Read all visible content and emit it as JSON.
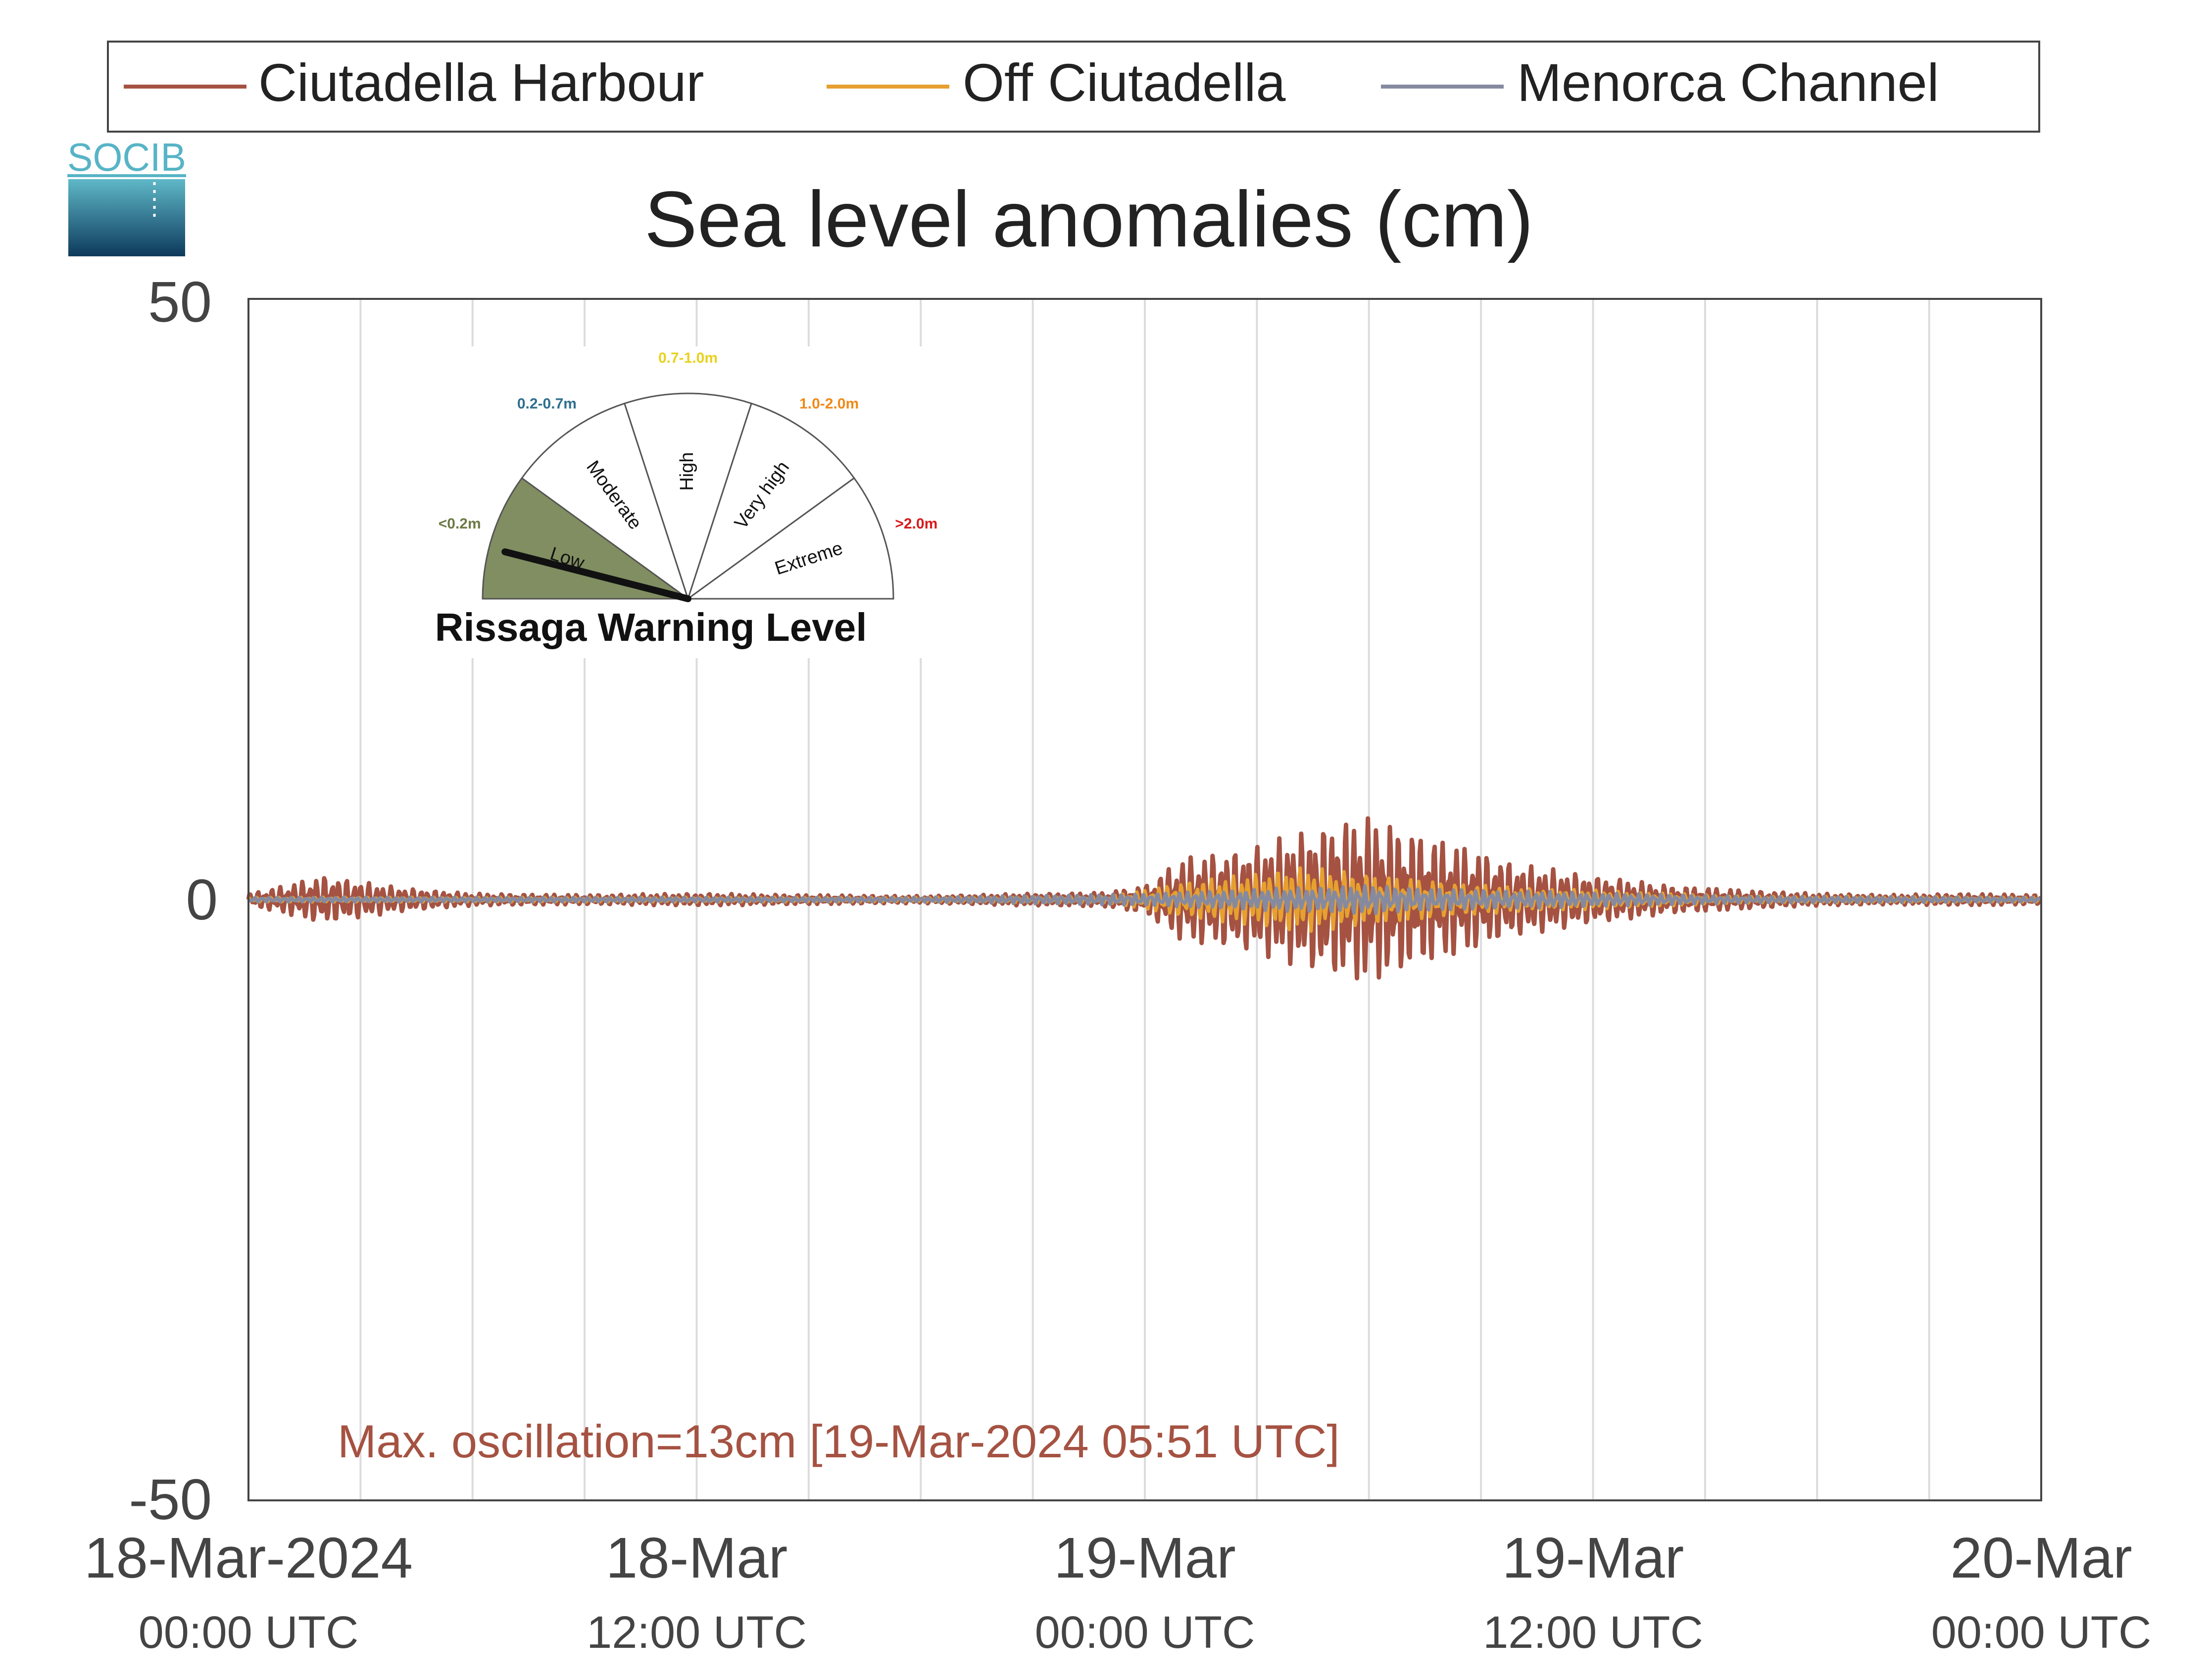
{
  "logo": {
    "text": "SOCIB"
  },
  "gauge": {
    "title": "Rissaga Warning Level",
    "levels": [
      {
        "name": "Low",
        "range": "<0.2m",
        "color": "#6b7a45"
      },
      {
        "name": "Moderate",
        "range": "0.2-0.7m",
        "color": "#2e6f8e"
      },
      {
        "name": "High",
        "range": "0.7-1.0m",
        "color": "#e8d21d"
      },
      {
        "name": "Very high",
        "range": "1.0-2.0m",
        "color": "#ef8a1a"
      },
      {
        "name": "Extreme",
        "range": ">2.0m",
        "color": "#d7191c"
      }
    ],
    "active_level": "Low",
    "needle_fraction": 0.08
  },
  "annotation": {
    "text": "Max. oscillation=13cm [19-Mar-2024 05:51 UTC]",
    "color": "#a55242"
  },
  "chart_data": {
    "type": "line",
    "title": "Sea level anomalies (cm)",
    "ylim": [
      -50,
      50
    ],
    "yticks": [
      "50",
      "0",
      "-50"
    ],
    "x_unit": "time",
    "x_range_hours": [
      0,
      48
    ],
    "xticks": [
      {
        "line1": "18-Mar-2024",
        "line2": "00:00 UTC",
        "hour": 0
      },
      {
        "line1": "18-Mar",
        "line2": "12:00 UTC",
        "hour": 12
      },
      {
        "line1": "19-Mar",
        "line2": "00:00 UTC",
        "hour": 24
      },
      {
        "line1": "19-Mar",
        "line2": "12:00 UTC",
        "hour": 36
      },
      {
        "line1": "20-Mar",
        "line2": "00:00 UTC",
        "hour": 48
      }
    ],
    "grid_hours": [
      3,
      6,
      9,
      12,
      15,
      18,
      21,
      24,
      27,
      30,
      33,
      36,
      39,
      42,
      45
    ],
    "legend_position": "top",
    "series": [
      {
        "name": "Ciutadella Harbour",
        "color": "#a55242",
        "envelope_hours": [
          0,
          1,
          2,
          3,
          4,
          6,
          9,
          12,
          15,
          18,
          21,
          23,
          24,
          25,
          26,
          27,
          28,
          29,
          30,
          31,
          32,
          33,
          34,
          35,
          36,
          38,
          40,
          42,
          44,
          46,
          48
        ],
        "amplitude_cm": [
          0.5,
          1.2,
          2.0,
          1.5,
          1.0,
          0.5,
          0.4,
          0.5,
          0.4,
          0.3,
          0.5,
          0.6,
          1.2,
          3.5,
          4.0,
          4.5,
          5.5,
          6.5,
          7.0,
          6.0,
          5.0,
          4.0,
          3.0,
          2.5,
          2.0,
          1.2,
          0.8,
          0.5,
          0.4,
          0.5,
          0.4
        ]
      },
      {
        "name": "Off Ciutadella",
        "color": "#e6a030",
        "envelope_hours": [
          0,
          6,
          12,
          18,
          23,
          24,
          25,
          27,
          28,
          29,
          30,
          31,
          32,
          34,
          36,
          40,
          48
        ],
        "amplitude_cm": [
          0.2,
          0.2,
          0.2,
          0.2,
          0.3,
          0.8,
          1.5,
          2.2,
          2.8,
          2.5,
          2.2,
          1.8,
          1.5,
          1.0,
          0.8,
          0.3,
          0.2
        ]
      },
      {
        "name": "Menorca Channel",
        "color": "#858aa0",
        "envelope_hours": [
          0,
          6,
          12,
          18,
          24,
          28,
          30,
          32,
          36,
          40,
          48
        ],
        "amplitude_cm": [
          0.2,
          0.2,
          0.2,
          0.2,
          0.5,
          1.0,
          1.2,
          0.9,
          0.6,
          0.3,
          0.2
        ]
      }
    ]
  }
}
